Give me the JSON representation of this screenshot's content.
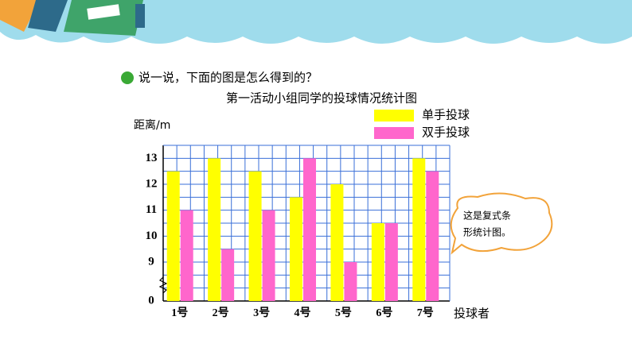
{
  "prompt": "说一说，下面的图是怎么得到的？",
  "bubble": [
    "这是复式条",
    "形统计图。"
  ],
  "chart_data": {
    "type": "bar",
    "title": "第一活动小组同学的投球情况统计图",
    "y_label": "距离/m",
    "x_label": "投球者",
    "categories": [
      "1号",
      "2号",
      "3号",
      "4号",
      "5号",
      "6号",
      "7号"
    ],
    "series": [
      {
        "name": "单手投球",
        "color": "#ffff00",
        "values": [
          12.5,
          13,
          12.5,
          11.5,
          12,
          10.5,
          13
        ]
      },
      {
        "name": "双手投球",
        "color": "#ff66cc",
        "values": [
          11,
          9.5,
          11,
          13,
          9,
          10.5,
          12.5
        ]
      }
    ],
    "ylim": [
      7.5,
      13.5
    ],
    "yticks": [
      0,
      9,
      10,
      11,
      12,
      13
    ],
    "minor_yticks": [
      8,
      8.5,
      9.5,
      10.5,
      11.5,
      12.5,
      13.5
    ],
    "axis_break": true,
    "grid": true,
    "grid_color": "#3a6fd8"
  }
}
